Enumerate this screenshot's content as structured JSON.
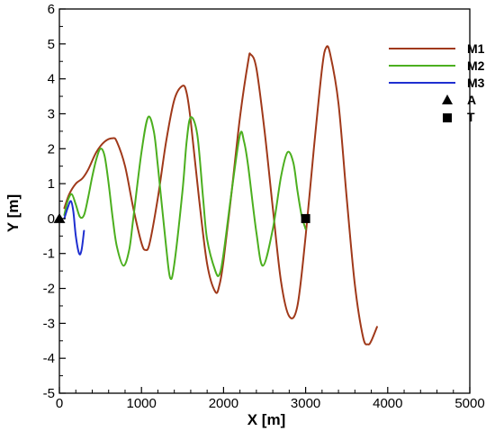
{
  "chart_data": {
    "type": "line",
    "xlabel": "X [m]",
    "ylabel": "Y [m]",
    "xlim": [
      0,
      5000
    ],
    "ylim": [
      -5,
      6
    ],
    "xticks": [
      0,
      1000,
      2000,
      3000,
      4000,
      5000
    ],
    "yticks": [
      -5,
      -4,
      -3,
      -2,
      -1,
      0,
      1,
      2,
      3,
      4,
      5,
      6
    ],
    "grid": false,
    "legend_position": "top-right",
    "series": [
      {
        "name": "M1",
        "color": "#a0391a",
        "x": [
          60,
          120,
          200,
          280,
          350,
          450,
          550,
          650,
          700,
          800,
          900,
          1000,
          1050,
          1100,
          1200,
          1300,
          1400,
          1500,
          1550,
          1600,
          1700,
          1800,
          1900,
          1950,
          2000,
          2100,
          2200,
          2300,
          2330,
          2400,
          2500,
          2600,
          2700,
          2800,
          2900,
          3000,
          3100,
          3200,
          3250,
          3300,
          3400,
          3500,
          3600,
          3700,
          3760,
          3800,
          3870
        ],
        "y": [
          0.3,
          0.7,
          1.0,
          1.15,
          1.4,
          1.9,
          2.2,
          2.3,
          2.2,
          1.5,
          0.3,
          -0.7,
          -0.9,
          -0.7,
          0.6,
          2.2,
          3.4,
          3.8,
          3.6,
          2.8,
          0.6,
          -1.3,
          -2.1,
          -1.9,
          -1.2,
          0.8,
          2.9,
          4.5,
          4.7,
          4.3,
          2.5,
          0.3,
          -1.8,
          -2.8,
          -2.5,
          -0.5,
          2.0,
          4.3,
          4.9,
          4.7,
          3.3,
          0.6,
          -1.9,
          -3.4,
          -3.6,
          -3.5,
          -3.1
        ]
      },
      {
        "name": "M2",
        "color": "#4caf1f",
        "x": [
          60,
          100,
          150,
          200,
          250,
          300,
          350,
          400,
          450,
          500,
          550,
          600,
          650,
          700,
          780,
          850,
          900,
          1000,
          1080,
          1150,
          1200,
          1300,
          1350,
          1400,
          1500,
          1550,
          1600,
          1680,
          1750,
          1800,
          1900,
          1950,
          2000,
          2100,
          2200,
          2250,
          2300,
          2400,
          2480,
          2600,
          2700,
          2780,
          2850,
          2900,
          2950,
          3000
        ],
        "y": [
          0.1,
          0.5,
          0.7,
          0.4,
          0.05,
          0.1,
          0.6,
          1.2,
          1.7,
          2.0,
          1.8,
          1.0,
          0.0,
          -0.8,
          -1.35,
          -0.9,
          0.0,
          1.9,
          2.9,
          2.5,
          1.5,
          -0.8,
          -1.7,
          -1.3,
          0.8,
          2.2,
          2.9,
          2.4,
          0.6,
          -0.6,
          -1.5,
          -1.6,
          -1.0,
          0.8,
          2.4,
          2.2,
          1.5,
          -0.4,
          -1.35,
          -0.3,
          1.2,
          1.9,
          1.6,
          0.8,
          0.1,
          -0.3
        ]
      },
      {
        "name": "M3",
        "color": "#1f2fd0",
        "x": [
          60,
          100,
          140,
          170,
          200,
          240,
          270,
          300
        ],
        "y": [
          0.0,
          0.3,
          0.5,
          0.2,
          -0.5,
          -1.0,
          -0.9,
          -0.35
        ]
      }
    ],
    "markers": [
      {
        "name": "A",
        "shape": "triangle",
        "x": 0,
        "y": 0
      },
      {
        "name": "T",
        "shape": "square",
        "x": 3000,
        "y": 0
      }
    ]
  }
}
